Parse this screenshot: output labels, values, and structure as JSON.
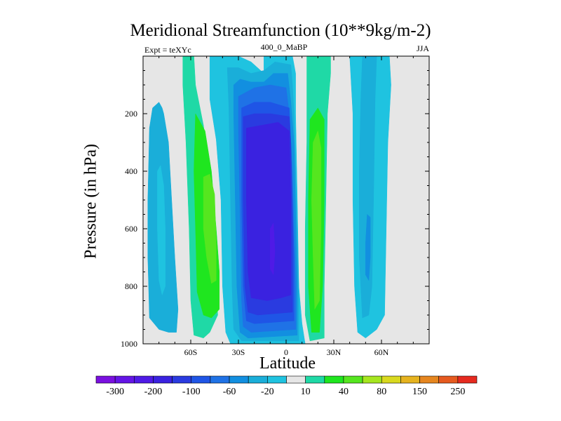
{
  "chart_data": {
    "type": "heatmap",
    "title": "Meridional Streamfunction (10**9kg/m-2)",
    "left_label": "Expt = teXYc",
    "center_label": "400_0_MaBP",
    "right_label": "JJA",
    "xlabel": "Latitude",
    "ylabel": "Pressure (in hPa)",
    "x_range": [
      -90,
      90
    ],
    "y_range": [
      0,
      1000
    ],
    "y_axis_inverted": true,
    "x_ticks": [
      {
        "value": -60,
        "label": "60S"
      },
      {
        "value": -30,
        "label": "30S"
      },
      {
        "value": 0,
        "label": "0"
      },
      {
        "value": 30,
        "label": "30N"
      },
      {
        "value": 60,
        "label": "60N"
      }
    ],
    "y_ticks": [
      {
        "value": 200,
        "label": "200"
      },
      {
        "value": 400,
        "label": "400"
      },
      {
        "value": 600,
        "label": "600"
      },
      {
        "value": 800,
        "label": "800"
      },
      {
        "value": 1000,
        "label": "1000"
      }
    ],
    "background_color": "#e6e6e6",
    "colorbar": {
      "colors": [
        "#7a10e0",
        "#6415e6",
        "#4f1ae6",
        "#3a22e0",
        "#2a3be0",
        "#1f55e6",
        "#1f72e6",
        "#128fe0",
        "#1aaed9",
        "#1fc3e0",
        "#e6e6e6",
        "#1fd9a6",
        "#1fe61f",
        "#55e61f",
        "#a6e61f",
        "#d9d91f",
        "#e6b31f",
        "#e6861f",
        "#e65a1f",
        "#e62a1f"
      ],
      "labels": [
        {
          "after_index": 0,
          "text": "-300"
        },
        {
          "after_index": 2,
          "text": "-200"
        },
        {
          "after_index": 4,
          "text": "-100"
        },
        {
          "after_index": 6,
          "text": "-60"
        },
        {
          "after_index": 8,
          "text": "-20"
        },
        {
          "after_index": 10,
          "text": "10"
        },
        {
          "after_index": 12,
          "text": "40"
        },
        {
          "after_index": 14,
          "text": "80"
        },
        {
          "after_index": 16,
          "text": "150"
        },
        {
          "after_index": 18,
          "text": "250"
        }
      ]
    },
    "contour_regions": [
      {
        "name": "sh-high-lat-cell",
        "color": "#1aaed9",
        "points": [
          [
            -86,
            250
          ],
          [
            -84,
            180
          ],
          [
            -80,
            160
          ],
          [
            -78,
            180
          ],
          [
            -77,
            200
          ],
          [
            -74,
            300
          ],
          [
            -72,
            500
          ],
          [
            -70,
            700
          ],
          [
            -68,
            880
          ],
          [
            -69,
            960
          ],
          [
            -74,
            960
          ],
          [
            -80,
            950
          ],
          [
            -86,
            910
          ],
          [
            -87,
            700
          ],
          [
            -87,
            500
          ]
        ]
      },
      {
        "name": "sh-high-lat-core",
        "color": "#1fc3e0",
        "points": [
          [
            -81,
            400
          ],
          [
            -79,
            380
          ],
          [
            -77,
            450
          ],
          [
            -76,
            600
          ],
          [
            -76,
            800
          ],
          [
            -78,
            830
          ],
          [
            -80,
            780
          ],
          [
            -81,
            600
          ]
        ]
      },
      {
        "name": "sh-green-cell",
        "color": "#1fd9a6",
        "points": [
          [
            -65,
            0
          ],
          [
            -58,
            0
          ],
          [
            -57,
            100
          ],
          [
            -52,
            240
          ],
          [
            -48,
            400
          ],
          [
            -45,
            700
          ],
          [
            -43,
            900
          ],
          [
            -48,
            960
          ],
          [
            -52,
            980
          ],
          [
            -58,
            970
          ],
          [
            -60,
            850
          ],
          [
            -61,
            600
          ],
          [
            -63,
            300
          ],
          [
            -65,
            100
          ]
        ]
      },
      {
        "name": "sh-green-mid",
        "color": "#1fe61f",
        "points": [
          [
            -57,
            200
          ],
          [
            -51,
            260
          ],
          [
            -47,
            400
          ],
          [
            -44,
            600
          ],
          [
            -42,
            750
          ],
          [
            -42,
            880
          ],
          [
            -47,
            910
          ],
          [
            -52,
            900
          ],
          [
            -56,
            820
          ],
          [
            -57,
            600
          ],
          [
            -58,
            400
          ]
        ]
      },
      {
        "name": "sh-green-core",
        "color": "#55e61f",
        "points": [
          [
            -52,
            420
          ],
          [
            -48,
            410
          ],
          [
            -45,
            480
          ],
          [
            -44,
            650
          ],
          [
            -44,
            780
          ],
          [
            -47,
            790
          ],
          [
            -50,
            700
          ],
          [
            -52,
            600
          ]
        ]
      },
      {
        "name": "sh-lightblue-outer",
        "color": "#1fc3e0",
        "points": [
          [
            -48,
            0
          ],
          [
            -48,
            150
          ],
          [
            -44,
            290
          ],
          [
            -41,
            500
          ],
          [
            -40,
            800
          ],
          [
            -38,
            960
          ],
          [
            -35,
            1000
          ],
          [
            12,
            1000
          ],
          [
            10,
            930
          ],
          [
            8,
            800
          ],
          [
            7,
            500
          ],
          [
            6,
            200
          ],
          [
            6,
            60
          ],
          [
            4,
            0
          ],
          [
            -14,
            0
          ],
          [
            -14,
            60
          ],
          [
            -22,
            20
          ],
          [
            -30,
            0
          ]
        ]
      },
      {
        "name": "sh-lightblue-band",
        "color": "#1aaed9",
        "points": [
          [
            -37,
            40
          ],
          [
            -36,
            180
          ],
          [
            -35,
            500
          ],
          [
            -34,
            800
          ],
          [
            -33,
            950
          ],
          [
            -28,
            990
          ],
          [
            8,
            990
          ],
          [
            8,
            800
          ],
          [
            6,
            400
          ],
          [
            5,
            200
          ],
          [
            4,
            100
          ],
          [
            3,
            30
          ],
          [
            -7,
            20
          ],
          [
            -14,
            50
          ],
          [
            -22,
            60
          ],
          [
            -30,
            40
          ]
        ]
      },
      {
        "name": "sh-blue-band",
        "color": "#128fe0",
        "points": [
          [
            -33,
            100
          ],
          [
            -33,
            200
          ],
          [
            -32,
            500
          ],
          [
            -31,
            800
          ],
          [
            -29,
            960
          ],
          [
            -24,
            980
          ],
          [
            7,
            970
          ],
          [
            7,
            800
          ],
          [
            5,
            300
          ],
          [
            3,
            160
          ],
          [
            1,
            60
          ],
          [
            -8,
            60
          ],
          [
            -14,
            90
          ],
          [
            -22,
            90
          ],
          [
            -29,
            80
          ]
        ]
      },
      {
        "name": "sh-blue-2",
        "color": "#1f72e6",
        "points": [
          [
            -30,
            140
          ],
          [
            -30,
            250
          ],
          [
            -29,
            550
          ],
          [
            -28,
            850
          ],
          [
            -27,
            940
          ],
          [
            -22,
            960
          ],
          [
            6,
            950
          ],
          [
            6,
            800
          ],
          [
            4,
            400
          ],
          [
            2,
            200
          ],
          [
            0,
            110
          ],
          [
            -10,
            100
          ],
          [
            -20,
            110
          ]
        ]
      },
      {
        "name": "sh-blue-3",
        "color": "#1f55e6",
        "points": [
          [
            -28,
            180
          ],
          [
            -28,
            500
          ],
          [
            -27,
            800
          ],
          [
            -25,
            920
          ],
          [
            -20,
            930
          ],
          [
            5,
            920
          ],
          [
            5,
            700
          ],
          [
            3,
            300
          ],
          [
            2,
            180
          ],
          [
            -10,
            160
          ],
          [
            -20,
            160
          ]
        ]
      },
      {
        "name": "sh-blue-4",
        "color": "#2a3be0",
        "points": [
          [
            -27,
            210
          ],
          [
            -27,
            500
          ],
          [
            -26,
            800
          ],
          [
            -24,
            890
          ],
          [
            -18,
            900
          ],
          [
            4,
            890
          ],
          [
            4,
            600
          ],
          [
            3,
            300
          ],
          [
            2,
            210
          ],
          [
            -10,
            200
          ],
          [
            -20,
            200
          ]
        ]
      },
      {
        "name": "sh-indigo",
        "color": "#3a22e0",
        "points": [
          [
            -25,
            250
          ],
          [
            -25,
            500
          ],
          [
            -24,
            750
          ],
          [
            -22,
            840
          ],
          [
            -12,
            850
          ],
          [
            -3,
            840
          ],
          [
            3,
            830
          ],
          [
            3,
            500
          ],
          [
            2,
            260
          ],
          [
            -5,
            230
          ],
          [
            -15,
            240
          ]
        ]
      },
      {
        "name": "sh-violet-core",
        "color": "#4f1ae6",
        "points": [
          [
            -10,
            600
          ],
          [
            -8,
            580
          ],
          [
            -7,
            680
          ],
          [
            -8,
            760
          ],
          [
            -10,
            740
          ]
        ]
      },
      {
        "name": "nh-green-cell",
        "color": "#1fd9a6",
        "points": [
          [
            13,
            0
          ],
          [
            28,
            0
          ],
          [
            28,
            60
          ],
          [
            26,
            200
          ],
          [
            25,
            500
          ],
          [
            24,
            800
          ],
          [
            24,
            980
          ],
          [
            15,
            990
          ],
          [
            12,
            900
          ],
          [
            12,
            600
          ],
          [
            13,
            300
          ],
          [
            13,
            100
          ]
        ]
      },
      {
        "name": "nh-green-mid",
        "color": "#1fe61f",
        "points": [
          [
            15,
            220
          ],
          [
            20,
            180
          ],
          [
            24,
            220
          ],
          [
            24,
            500
          ],
          [
            23,
            800
          ],
          [
            21,
            960
          ],
          [
            16,
            960
          ],
          [
            14,
            800
          ],
          [
            14,
            500
          ]
        ]
      },
      {
        "name": "nh-green-core",
        "color": "#55e61f",
        "points": [
          [
            17,
            300
          ],
          [
            20,
            260
          ],
          [
            22,
            320
          ],
          [
            22,
            600
          ],
          [
            21,
            850
          ],
          [
            18,
            880
          ],
          [
            17,
            700
          ],
          [
            16,
            500
          ]
        ]
      },
      {
        "name": "nh-lightblue",
        "color": "#1fc3e0",
        "points": [
          [
            40,
            0
          ],
          [
            65,
            0
          ],
          [
            66,
            100
          ],
          [
            64,
            300
          ],
          [
            63,
            600
          ],
          [
            62,
            900
          ],
          [
            57,
            950
          ],
          [
            50,
            980
          ],
          [
            45,
            960
          ],
          [
            43,
            800
          ],
          [
            42,
            500
          ],
          [
            42,
            200
          ]
        ]
      },
      {
        "name": "nh-blue",
        "color": "#1aaed9",
        "points": [
          [
            48,
            0
          ],
          [
            57,
            0
          ],
          [
            56,
            150
          ],
          [
            55,
            500
          ],
          [
            54,
            800
          ],
          [
            52,
            900
          ],
          [
            48,
            910
          ],
          [
            46,
            700
          ],
          [
            46,
            400
          ],
          [
            47,
            150
          ]
        ]
      },
      {
        "name": "nh-blue-core",
        "color": "#128fe0",
        "points": [
          [
            51,
            550
          ],
          [
            53,
            560
          ],
          [
            53,
            700
          ],
          [
            52,
            780
          ],
          [
            50,
            760
          ],
          [
            50,
            650
          ]
        ]
      }
    ]
  }
}
